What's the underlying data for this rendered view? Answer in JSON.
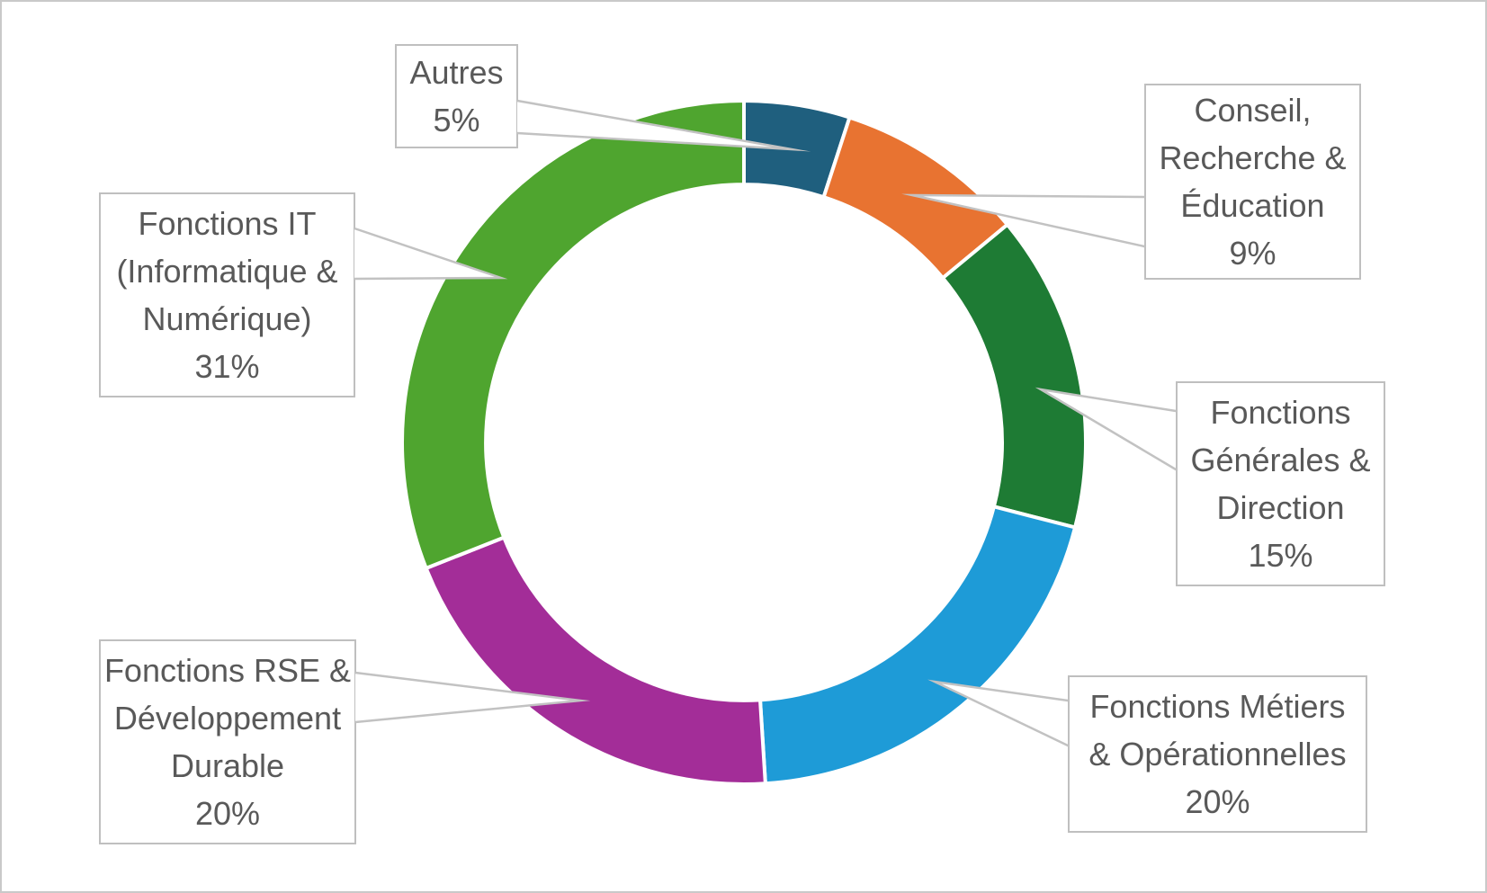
{
  "chart_data": {
    "type": "pie",
    "subtype": "donut",
    "title": "",
    "legend_position": "none",
    "start_angle_deg": 0,
    "direction": "clockwise",
    "hole_ratio": 0.755,
    "slice_gap_color": "#FFFFFF",
    "label_text_color": "#595959",
    "callout_border_color": "#BFBFBF",
    "slices": [
      {
        "id": "autres",
        "label": "Autres",
        "pct": 5,
        "color": "#1F5F7E"
      },
      {
        "id": "conseil-recherche-education",
        "label": "Conseil, Recherche & Éducation",
        "pct": 9,
        "color": "#E87331"
      },
      {
        "id": "fonctions-generales-direction",
        "label": "Fonctions Générales & Direction",
        "pct": 15,
        "color": "#1E7B34"
      },
      {
        "id": "fonctions-metiers-operationnelles",
        "label": "Fonctions Métiers & Opérationnelles",
        "pct": 20,
        "color": "#1E9BD7"
      },
      {
        "id": "fonctions-rse-developpement-durable",
        "label": "Fonctions RSE & Développement Durable",
        "pct": 20,
        "color": "#A32D98"
      },
      {
        "id": "fonctions-it-informatique-numerique",
        "label": "Fonctions IT (Informatique & Numérique)",
        "pct": 31,
        "color": "#4FA52F"
      }
    ]
  },
  "callouts": {
    "autres": {
      "text": "Autres\n5%"
    },
    "conseil": {
      "text": "Conseil,\nRecherche &\nÉducation\n9%"
    },
    "generales": {
      "text": "Fonctions\nGénérales &\nDirection\n15%"
    },
    "metiers": {
      "text": "Fonctions Métiers\n& Opérationnelles\n20%"
    },
    "rse": {
      "text": "Fonctions RSE &\nDéveloppement\nDurable\n20%"
    },
    "it": {
      "text": "Fonctions IT\n(Informatique &\nNumérique)\n31%"
    }
  }
}
